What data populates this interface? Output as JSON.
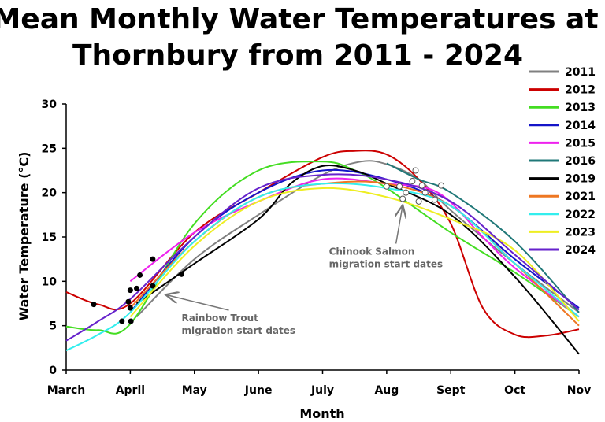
{
  "chart_data": {
    "type": "line",
    "title_line1": "Mean Monthly Water Temperatures at",
    "title_line2": "Thornbury from 2011 - 2024",
    "xlabel": "Month",
    "ylabel": "Water Temperature (°C)",
    "x_ticks": [
      "March",
      "April",
      "May",
      "June",
      "July",
      "Aug",
      "Sept",
      "Oct",
      "Nov"
    ],
    "ylim": [
      0,
      30
    ],
    "y_ticks": [
      0,
      5,
      10,
      15,
      20,
      25,
      30
    ],
    "grid": false,
    "legend_position": "top-right",
    "series": [
      {
        "name": "2011",
        "color": "#808080",
        "points": [
          [
            1.1,
            6.0
          ],
          [
            2.0,
            12.5
          ],
          [
            3.0,
            17.5
          ],
          [
            4.0,
            22.0
          ],
          [
            4.6,
            23.5
          ],
          [
            5.0,
            23.2
          ],
          [
            5.5,
            21.5
          ],
          [
            6.0,
            18.0
          ],
          [
            7.0,
            12.0
          ],
          [
            8.0,
            6.5
          ]
        ]
      },
      {
        "name": "2012",
        "color": "#cc0000",
        "points": [
          [
            0.0,
            8.8
          ],
          [
            0.5,
            7.4
          ],
          [
            1.0,
            7.5
          ],
          [
            2.0,
            15.5
          ],
          [
            3.0,
            20.0
          ],
          [
            4.0,
            24.0
          ],
          [
            4.5,
            24.7
          ],
          [
            5.0,
            24.3
          ],
          [
            5.5,
            21.5
          ],
          [
            6.0,
            16.5
          ],
          [
            6.5,
            7.0
          ],
          [
            7.0,
            4.0
          ],
          [
            7.5,
            3.9
          ],
          [
            8.0,
            4.6
          ]
        ]
      },
      {
        "name": "2013",
        "color": "#44dd22",
        "points": [
          [
            0.0,
            4.9
          ],
          [
            0.5,
            4.5
          ],
          [
            1.0,
            5.2
          ],
          [
            2.0,
            16.5
          ],
          [
            3.0,
            22.5
          ],
          [
            4.0,
            23.5
          ],
          [
            4.5,
            22.5
          ],
          [
            5.0,
            20.5
          ],
          [
            6.0,
            15.5
          ],
          [
            7.0,
            11.0
          ],
          [
            8.0,
            6.0
          ]
        ]
      },
      {
        "name": "2014",
        "color": "#1414c8",
        "points": [
          [
            1.0,
            6.5
          ],
          [
            2.0,
            15.0
          ],
          [
            3.0,
            20.0
          ],
          [
            4.0,
            22.5
          ],
          [
            5.0,
            21.5
          ],
          [
            6.0,
            18.5
          ],
          [
            7.0,
            12.5
          ],
          [
            8.0,
            7.0
          ]
        ]
      },
      {
        "name": "2015",
        "color": "#ee22ee",
        "points": [
          [
            1.0,
            10.0
          ],
          [
            2.0,
            15.5
          ],
          [
            3.0,
            19.0
          ],
          [
            4.0,
            21.5
          ],
          [
            5.0,
            21.0
          ],
          [
            5.8,
            20.0
          ],
          [
            6.5,
            15.0
          ],
          [
            7.0,
            11.5
          ],
          [
            8.0,
            6.0
          ]
        ]
      },
      {
        "name": "2016",
        "color": "#207878",
        "points": [
          [
            5.0,
            23.3
          ],
          [
            5.5,
            21.5
          ],
          [
            6.0,
            20.0
          ],
          [
            7.0,
            14.5
          ],
          [
            8.0,
            6.5
          ]
        ]
      },
      {
        "name": "2019",
        "color": "#000000",
        "points": [
          [
            1.1,
            7.5
          ],
          [
            2.0,
            12.0
          ],
          [
            3.0,
            17.0
          ],
          [
            3.5,
            21.0
          ],
          [
            4.0,
            23.0
          ],
          [
            4.5,
            22.5
          ],
          [
            5.0,
            21.0
          ],
          [
            6.0,
            17.5
          ],
          [
            7.0,
            10.5
          ],
          [
            8.0,
            1.8
          ]
        ]
      },
      {
        "name": "2021",
        "color": "#ee7722",
        "points": [
          [
            1.0,
            7.0
          ],
          [
            2.0,
            14.5
          ],
          [
            3.0,
            19.5
          ],
          [
            4.0,
            21.0
          ],
          [
            5.0,
            21.0
          ],
          [
            6.0,
            18.5
          ],
          [
            7.0,
            12.0
          ],
          [
            8.0,
            5.0
          ]
        ]
      },
      {
        "name": "2022",
        "color": "#33eeee",
        "points": [
          [
            0.0,
            2.2
          ],
          [
            0.5,
            4.0
          ],
          [
            1.0,
            6.5
          ],
          [
            2.0,
            14.5
          ],
          [
            3.0,
            19.5
          ],
          [
            4.0,
            21.0
          ],
          [
            5.0,
            20.5
          ],
          [
            6.0,
            18.5
          ],
          [
            7.0,
            12.0
          ],
          [
            8.0,
            6.0
          ]
        ]
      },
      {
        "name": "2023",
        "color": "#eeee22",
        "points": [
          [
            1.0,
            6.0
          ],
          [
            2.0,
            14.0
          ],
          [
            3.0,
            19.0
          ],
          [
            4.0,
            20.5
          ],
          [
            5.0,
            19.5
          ],
          [
            6.0,
            17.0
          ],
          [
            7.0,
            13.5
          ],
          [
            8.0,
            5.5
          ]
        ]
      },
      {
        "name": "2024",
        "color": "#6622cc",
        "points": [
          [
            0.0,
            3.3
          ],
          [
            0.5,
            5.5
          ],
          [
            1.0,
            8.0
          ],
          [
            2.0,
            15.0
          ],
          [
            3.0,
            20.5
          ],
          [
            4.0,
            22.0
          ],
          [
            5.0,
            21.5
          ],
          [
            6.0,
            19.0
          ],
          [
            7.0,
            13.0
          ],
          [
            8.0,
            6.8
          ]
        ]
      }
    ],
    "trout_dates": [
      [
        0.43,
        7.4
      ],
      [
        0.87,
        5.5
      ],
      [
        0.97,
        7.7
      ],
      [
        1.0,
        9.0
      ],
      [
        1.0,
        7.0
      ],
      [
        1.01,
        5.5
      ],
      [
        1.1,
        9.2
      ],
      [
        1.15,
        10.7
      ],
      [
        1.35,
        12.5
      ],
      [
        1.35,
        9.5
      ],
      [
        1.8,
        10.8
      ]
    ],
    "salmon_dates": [
      [
        5.0,
        20.7
      ],
      [
        5.2,
        20.7
      ],
      [
        5.25,
        19.3
      ],
      [
        5.3,
        20.0
      ],
      [
        5.4,
        21.3
      ],
      [
        5.55,
        20.8
      ],
      [
        5.45,
        22.5
      ],
      [
        5.6,
        20.0
      ],
      [
        5.75,
        19.2
      ],
      [
        5.85,
        20.8
      ],
      [
        5.5,
        19.0
      ]
    ],
    "annotations": [
      {
        "lines": [
          "Rainbow Trout",
          "migration start dates"
        ],
        "x": 1.8,
        "y": 5.5,
        "arrow_to": [
          1.55,
          8.5
        ]
      },
      {
        "lines": [
          "Chinook Salmon",
          "migration start dates"
        ],
        "x": 4.1,
        "y": 13.0,
        "arrow_to": [
          5.25,
          18.6
        ]
      }
    ]
  }
}
